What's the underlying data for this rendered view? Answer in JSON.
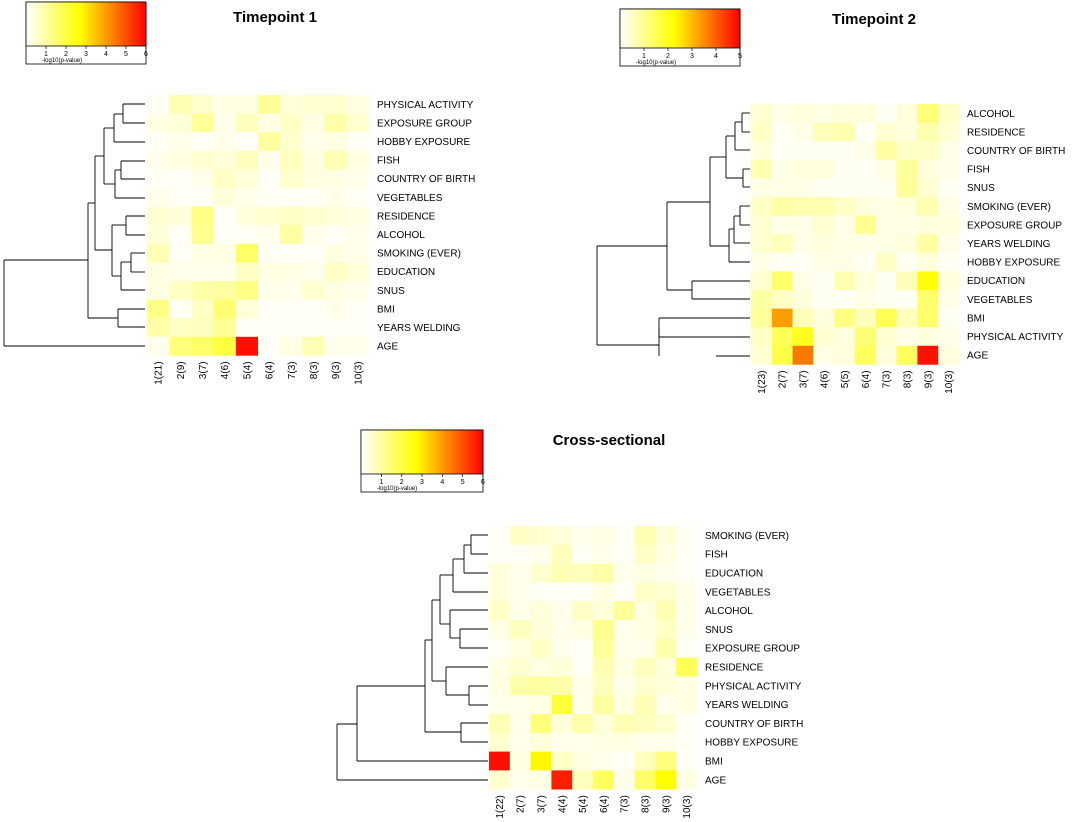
{
  "figure": {
    "legend_caption": "-log10(p-value)",
    "colors": {
      "low": "#ffffff",
      "mid": "#ffff00",
      "high": "#ff0000"
    }
  },
  "chart_data": [
    {
      "type": "heatmap",
      "title": "Timepoint 1",
      "legend_ticks": [
        "1",
        "2",
        "3",
        "4",
        "5",
        "6"
      ],
      "legend_max": 6,
      "columns": [
        "1(21)",
        "2(9)",
        "3(7)",
        "4(6)",
        "5(4)",
        "6(4)",
        "7(3)",
        "8(3)",
        "9(3)",
        "10(3)"
      ],
      "rows": [
        "PHYSICAL ACTIVITY",
        "EXPOSURE GROUP",
        "HOBBY EXPOSURE",
        "FISH",
        "COUNTRY OF BIRTH",
        "VEGETABLES",
        "RESIDENCE",
        "ALCOHOL",
        "SMOKING (EVER)",
        "EDUCATION",
        "SNUS",
        "BMI",
        "YEARS WELDING",
        "AGE"
      ],
      "values": [
        [
          0.1,
          0.8,
          0.5,
          0.3,
          0.3,
          1.1,
          0.4,
          0.5,
          0.5,
          0.3
        ],
        [
          0.3,
          0.4,
          1.1,
          0.2,
          0.7,
          0.3,
          0.6,
          0.3,
          0.9,
          0.5
        ],
        [
          0.1,
          0.2,
          0.1,
          0.2,
          0.1,
          1.0,
          0.5,
          0.2,
          0.3,
          0.1
        ],
        [
          0.2,
          0.3,
          0.5,
          0.4,
          0.7,
          0.2,
          0.7,
          0.3,
          0.8,
          0.3
        ],
        [
          0.1,
          0.1,
          0.2,
          0.6,
          0.4,
          0.1,
          0.5,
          0.3,
          0.3,
          0.2
        ],
        [
          0.2,
          0.1,
          0.1,
          0.4,
          0.2,
          0.1,
          0.1,
          0.1,
          0.2,
          0.1
        ],
        [
          0.5,
          0.4,
          1.3,
          0.1,
          0.4,
          0.5,
          0.6,
          0.5,
          0.4,
          0.3
        ],
        [
          0.4,
          0.1,
          1.2,
          0.1,
          0.1,
          0.2,
          1.0,
          0.2,
          0.1,
          0.2
        ],
        [
          0.8,
          0.1,
          0.3,
          0.3,
          1.6,
          0.1,
          0.1,
          0.1,
          0.3,
          0.2
        ],
        [
          0.3,
          0.2,
          0.2,
          0.2,
          0.6,
          0.3,
          0.3,
          0.2,
          0.6,
          0.4
        ],
        [
          0.3,
          0.6,
          0.9,
          1.0,
          1.3,
          0.2,
          0.2,
          0.5,
          0.3,
          0.2
        ],
        [
          1.3,
          0.1,
          0.6,
          1.5,
          0.4,
          0.1,
          0.1,
          0.1,
          0.2,
          0.1
        ],
        [
          0.9,
          0.6,
          0.7,
          1.1,
          0.1,
          0.1,
          0.1,
          0.1,
          0.1,
          0.1
        ],
        [
          0.2,
          1.4,
          1.6,
          2.0,
          5.8,
          0.1,
          0.3,
          0.8,
          0.2,
          0.2
        ]
      ]
    },
    {
      "type": "heatmap",
      "title": "Timepoint 2",
      "legend_ticks": [
        "1",
        "2",
        "3",
        "4",
        "5"
      ],
      "legend_max": 5,
      "columns": [
        "1(23)",
        "2(7)",
        "3(7)",
        "4(6)",
        "5(5)",
        "6(4)",
        "7(3)",
        "8(3)",
        "9(3)",
        "10(3)"
      ],
      "rows": [
        "ALCOHOL",
        "RESIDENCE",
        "COUNTRY OF BIRTH",
        "FISH",
        "SNUS",
        "SMOKING (EVER)",
        "EXPOSURE GROUP",
        "YEARS WELDING",
        "HOBBY EXPOSURE",
        "EDUCATION",
        "VEGETABLES",
        "BMI",
        "PHYSICAL ACTIVITY",
        "AGE"
      ],
      "values": [
        [
          0.4,
          0.2,
          0.3,
          0.2,
          0.3,
          0.3,
          0.1,
          0.3,
          1.2,
          0.5
        ],
        [
          0.5,
          0.1,
          0.2,
          0.6,
          0.7,
          0.1,
          0.4,
          0.3,
          0.7,
          0.4
        ],
        [
          0.3,
          0.1,
          0.1,
          0.1,
          0.1,
          0.2,
          0.8,
          0.5,
          0.5,
          0.2
        ],
        [
          0.7,
          0.2,
          0.3,
          0.3,
          0.1,
          0.1,
          0.2,
          0.9,
          0.3,
          0.2
        ],
        [
          0.2,
          0.2,
          0.2,
          0.1,
          0.1,
          0.1,
          0.1,
          0.9,
          0.4,
          0.1
        ],
        [
          0.5,
          0.8,
          0.7,
          0.7,
          0.5,
          0.3,
          0.2,
          0.3,
          0.7,
          0.2
        ],
        [
          0.4,
          0.2,
          0.2,
          0.4,
          0.2,
          1.0,
          0.2,
          0.2,
          0.3,
          0.3
        ],
        [
          0.4,
          0.6,
          0.2,
          0.3,
          0.2,
          0.2,
          0.2,
          0.3,
          0.8,
          0.2
        ],
        [
          0.2,
          0.1,
          0.1,
          0.2,
          0.2,
          0.1,
          0.5,
          0.1,
          0.3,
          0.1
        ],
        [
          0.4,
          1.3,
          0.2,
          0.1,
          0.7,
          0.3,
          0.1,
          0.6,
          2.2,
          0.3
        ],
        [
          0.8,
          0.5,
          0.3,
          0.1,
          0.1,
          0.2,
          0.1,
          0.1,
          1.3,
          0.2
        ],
        [
          0.9,
          3.3,
          0.6,
          0.3,
          1.1,
          0.6,
          1.5,
          0.6,
          1.3,
          0.1
        ],
        [
          0.5,
          1.5,
          2.0,
          0.4,
          0.3,
          1.2,
          0.4,
          0.2,
          0.3,
          0.2
        ],
        [
          0.4,
          1.6,
          3.7,
          0.2,
          0.3,
          1.4,
          0.3,
          1.4,
          4.8,
          0.3
        ]
      ]
    },
    {
      "type": "heatmap",
      "title": "Cross-sectional",
      "legend_ticks": [
        "1",
        "2",
        "3",
        "4",
        "5",
        "6"
      ],
      "legend_max": 6,
      "columns": [
        "1(22)",
        "2(7)",
        "3(7)",
        "4(4)",
        "5(4)",
        "6(4)",
        "7(3)",
        "8(3)",
        "9(3)",
        "10(3)"
      ],
      "rows": [
        "SMOKING (EVER)",
        "FISH",
        "EDUCATION",
        "VEGETABLES",
        "ALCOHOL",
        "SNUS",
        "EXPOSURE GROUP",
        "RESIDENCE",
        "PHYSICAL ACTIVITY",
        "YEARS WELDING",
        "COUNTRY OF BIRTH",
        "HOBBY EXPOSURE",
        "BMI",
        "AGE"
      ],
      "values": [
        [
          0.1,
          0.6,
          0.5,
          0.4,
          0.2,
          0.3,
          0.1,
          0.8,
          0.4,
          0.1
        ],
        [
          0.1,
          0.1,
          0.2,
          0.7,
          0.1,
          0.2,
          0.1,
          0.6,
          0.3,
          0.1
        ],
        [
          0.4,
          0.2,
          0.5,
          0.8,
          0.7,
          0.9,
          0.2,
          0.3,
          0.2,
          0.1
        ],
        [
          0.4,
          0.2,
          0.1,
          0.1,
          0.1,
          0.3,
          0.1,
          0.6,
          0.5,
          0.2
        ],
        [
          0.6,
          0.2,
          0.4,
          0.2,
          0.6,
          0.4,
          1.1,
          0.3,
          0.8,
          0.2
        ],
        [
          0.3,
          0.7,
          0.4,
          0.2,
          0.3,
          1.2,
          0.2,
          0.3,
          0.6,
          0.2
        ],
        [
          0.1,
          0.3,
          0.6,
          0.2,
          0.1,
          1.1,
          0.2,
          0.2,
          0.9,
          0.1
        ],
        [
          0.3,
          0.5,
          0.3,
          0.4,
          0.1,
          0.8,
          0.3,
          0.7,
          0.4,
          1.8
        ],
        [
          0.3,
          0.9,
          1.0,
          0.9,
          0.2,
          0.7,
          0.2,
          0.5,
          0.4,
          0.3
        ],
        [
          0.2,
          0.2,
          0.3,
          2.1,
          0.2,
          1.0,
          0.3,
          0.8,
          0.2,
          0.3
        ],
        [
          0.8,
          0.2,
          1.4,
          0.4,
          0.9,
          0.4,
          0.8,
          0.7,
          0.5,
          0.1
        ],
        [
          0.5,
          0.2,
          0.4,
          0.2,
          0.2,
          0.3,
          0.3,
          0.2,
          0.2,
          0.1
        ],
        [
          5.8,
          0.3,
          2.8,
          0.6,
          0.3,
          0.2,
          0.1,
          0.7,
          1.4,
          0.1
        ],
        [
          0.5,
          0.2,
          0.3,
          5.6,
          0.7,
          1.7,
          0.2,
          1.6,
          2.7,
          0.3
        ]
      ]
    }
  ]
}
